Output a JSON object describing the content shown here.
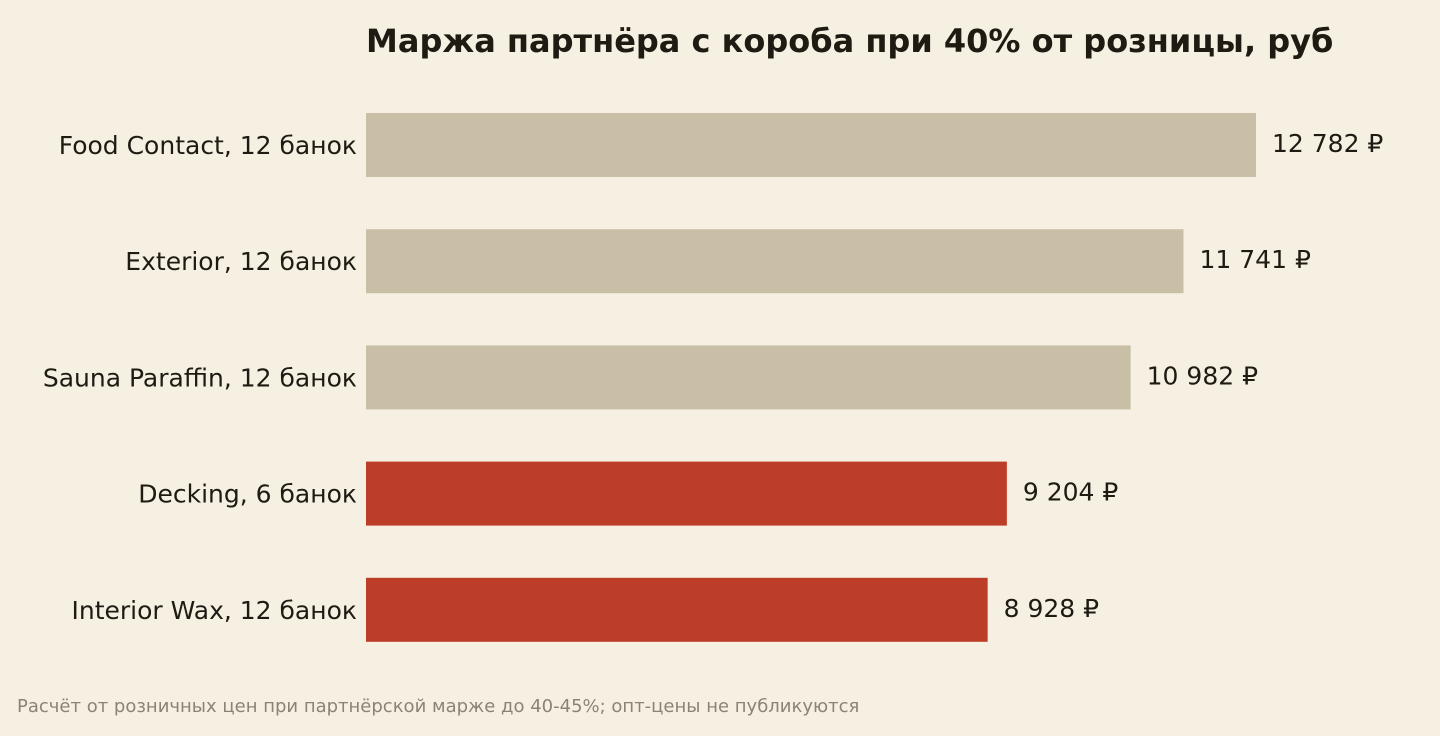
{
  "chart_data": {
    "type": "bar",
    "orientation": "horizontal",
    "title": "Маржа партнёра с короба при 40% от розницы, руб",
    "xlabel": "",
    "ylabel": "",
    "grid": false,
    "xlim": [
      0,
      12782
    ],
    "categories": [
      "Food Contact, 12 банок",
      "Exterior, 12 банок",
      "Sauna Paraffin, 12 банок",
      "Decking, 6 банок",
      "Interior Wax, 12 банок"
    ],
    "values": [
      12782,
      11741,
      10982,
      9204,
      8928
    ],
    "value_labels": [
      "12 782 ₽",
      "11 741 ₽",
      "10 982 ₽",
      "9 204 ₽",
      "8 928 ₽"
    ],
    "bar_colors": [
      "#c9bfa7",
      "#c9bfa7",
      "#c9bfa7",
      "#bc3d28",
      "#bc3d28"
    ],
    "footnote": "Расчёт от розничных цен при партнёрской марже до 40-45%; опт-цены не публикуются"
  },
  "colors": {
    "background": "#f6f0e3",
    "neutral_bar": "#c9bfa7",
    "highlight_bar": "#bc3d28",
    "text": "#1f1a12",
    "footnote_text": "#8a8478"
  }
}
